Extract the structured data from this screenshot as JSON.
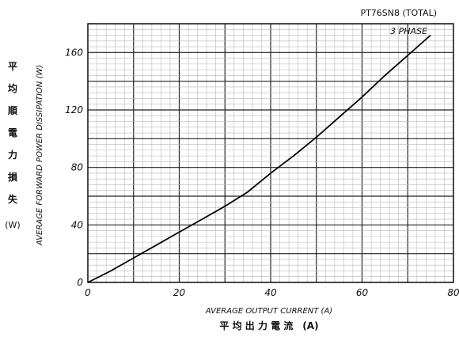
{
  "chart_data": {
    "type": "line",
    "title": "PT76SN8 (TOTAL)",
    "xlabel": "AVERAGE OUTPUT CURRENT (A)",
    "xlabel_jp": "平 均 出 力 電 流　(A)",
    "ylabel": "AVERAGE FORWARD POWER DISSIPATION (W)",
    "ylabel_jp": [
      "平",
      "均",
      "順",
      "電",
      "力",
      "損",
      "失"
    ],
    "ylabel_jp_unit": "(W)",
    "xlim": [
      0,
      80
    ],
    "ylim": [
      0,
      180
    ],
    "x_ticks": [
      0,
      20,
      40,
      60,
      80
    ],
    "y_ticks": [
      0,
      40,
      80,
      120,
      160
    ],
    "grid": true,
    "series": [
      {
        "name": "3 PHASE",
        "x": [
          0,
          5,
          10,
          15,
          20,
          25,
          30,
          35,
          40,
          45,
          50,
          55,
          60,
          65,
          70,
          75
        ],
        "y": [
          0,
          8,
          17,
          26,
          35,
          44,
          53,
          63,
          76,
          88,
          101,
          115,
          129,
          144,
          158,
          172
        ]
      }
    ]
  }
}
